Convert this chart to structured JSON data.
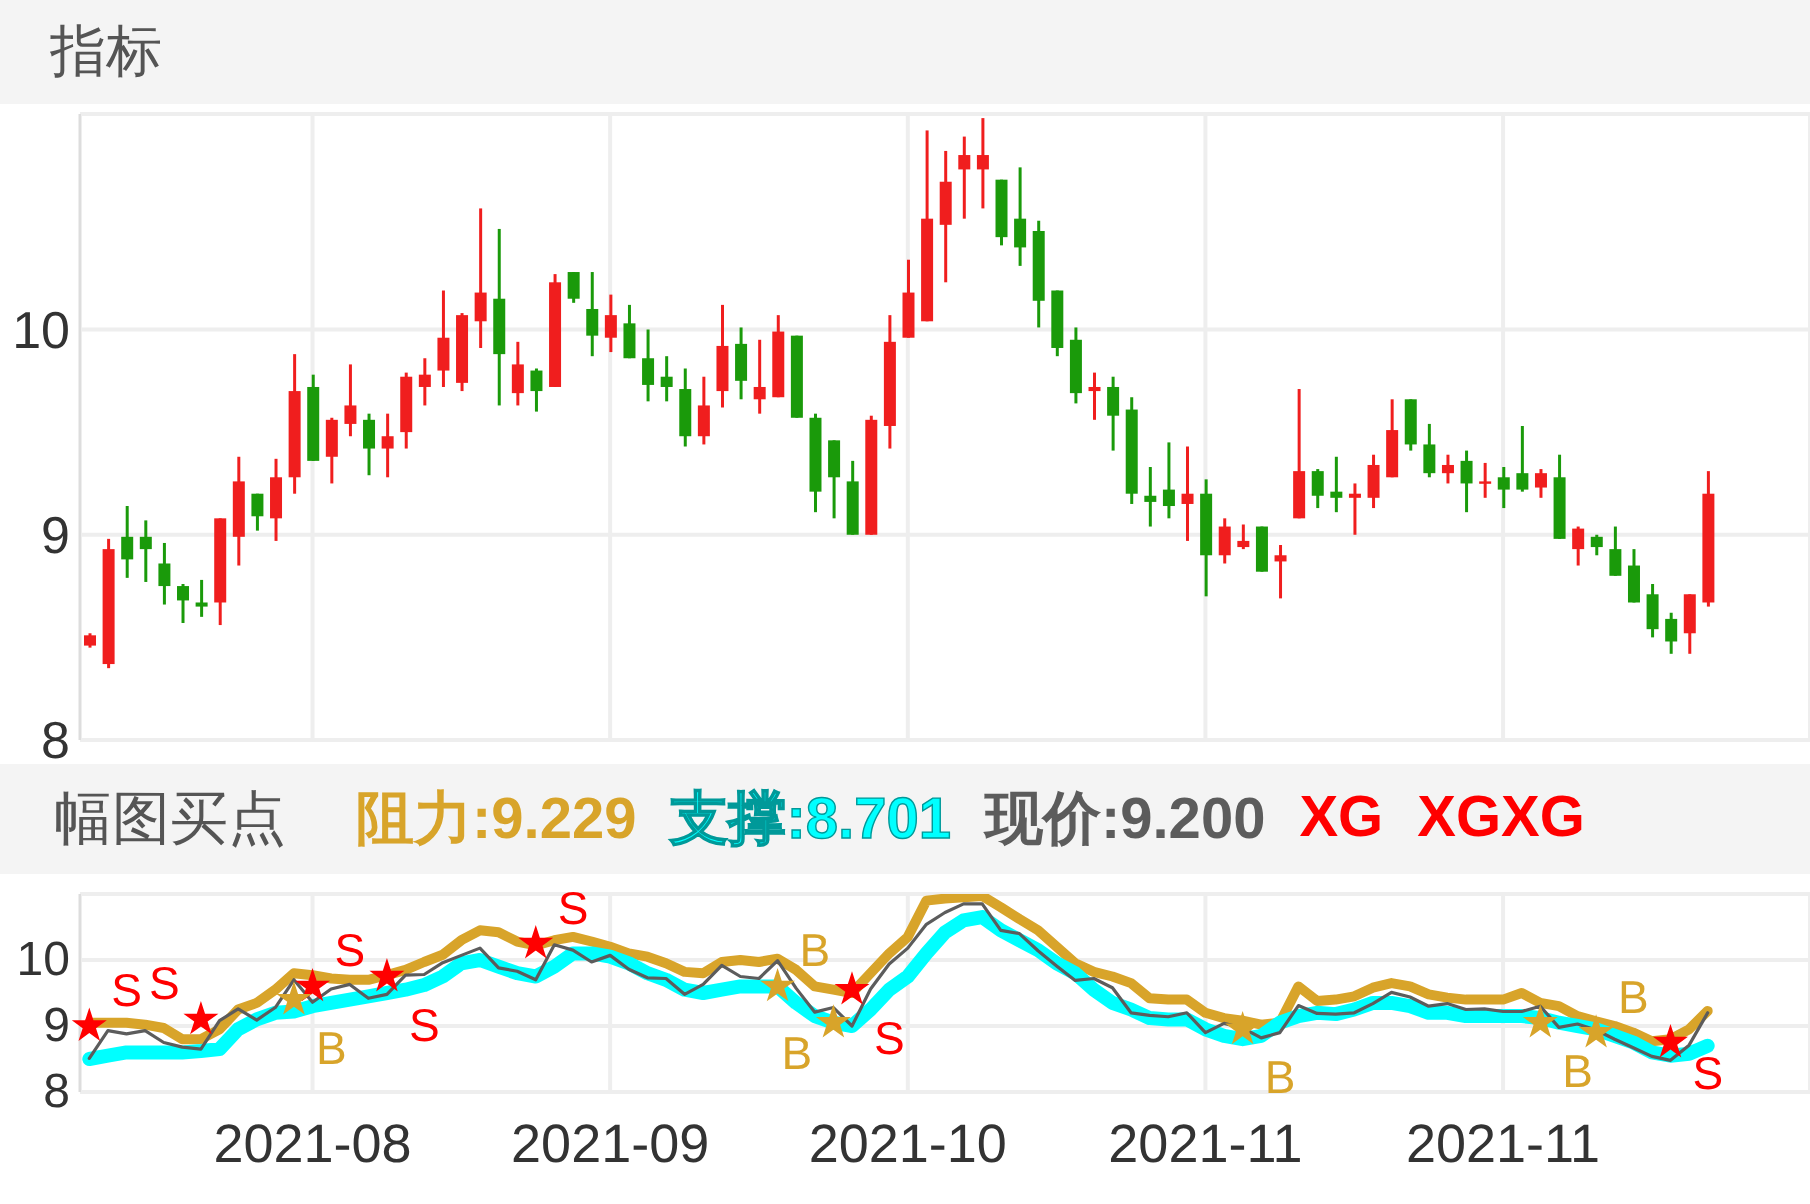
{
  "chart_data": [
    {
      "type": "candlestick",
      "title": "指标",
      "categories": [
        null,
        null,
        null,
        null,
        null,
        null,
        null,
        null,
        null,
        null,
        null,
        null,
        "2021-08",
        null,
        null,
        null,
        null,
        null,
        null,
        null,
        null,
        null,
        null,
        null,
        null,
        null,
        null,
        null,
        "2021-09",
        null,
        null,
        null,
        null,
        null,
        null,
        null,
        null,
        null,
        null,
        null,
        null,
        null,
        null,
        null,
        "2021-10",
        null,
        null,
        null,
        null,
        null,
        null,
        null,
        null,
        null,
        null,
        null,
        null,
        null,
        null,
        null,
        "2021-11",
        null,
        null,
        null,
        null,
        null,
        null,
        null,
        null,
        null,
        null,
        null,
        null,
        null,
        null,
        null,
        "2021-11",
        null,
        null,
        null,
        null,
        null,
        null,
        null,
        null,
        null,
        null,
        null,
        null,
        null,
        null,
        null,
        null
      ],
      "ohlc": [
        [
          8.46,
          8.52,
          8.45,
          8.51
        ],
        [
          8.37,
          8.98,
          8.35,
          8.93
        ],
        [
          8.99,
          9.14,
          8.79,
          8.88
        ],
        [
          8.99,
          9.07,
          8.77,
          8.93
        ],
        [
          8.86,
          8.96,
          8.66,
          8.75
        ],
        [
          8.75,
          8.76,
          8.57,
          8.68
        ],
        [
          8.67,
          8.78,
          8.6,
          8.65
        ],
        [
          8.67,
          9.08,
          8.56,
          9.08
        ],
        [
          8.99,
          9.38,
          8.85,
          9.26
        ],
        [
          9.2,
          9.2,
          9.02,
          9.09
        ],
        [
          9.08,
          9.37,
          8.97,
          9.28
        ],
        [
          9.28,
          9.88,
          9.2,
          9.7
        ],
        [
          9.72,
          9.78,
          9.36,
          9.36
        ],
        [
          9.38,
          9.57,
          9.25,
          9.56
        ],
        [
          9.54,
          9.83,
          9.48,
          9.63
        ],
        [
          9.56,
          9.59,
          9.29,
          9.42
        ],
        [
          9.42,
          9.59,
          9.28,
          9.48
        ],
        [
          9.5,
          9.79,
          9.42,
          9.77
        ],
        [
          9.72,
          9.86,
          9.63,
          9.78
        ],
        [
          9.8,
          10.19,
          9.72,
          9.96
        ],
        [
          9.74,
          10.08,
          9.7,
          10.07
        ],
        [
          10.04,
          10.59,
          9.91,
          10.18
        ],
        [
          10.15,
          10.49,
          9.63,
          9.88
        ],
        [
          9.69,
          9.94,
          9.63,
          9.83
        ],
        [
          9.8,
          9.81,
          9.6,
          9.7
        ],
        [
          9.72,
          10.27,
          9.72,
          10.23
        ],
        [
          10.28,
          10.28,
          10.13,
          10.15
        ],
        [
          10.1,
          10.28,
          9.87,
          9.97
        ],
        [
          9.96,
          10.17,
          9.89,
          10.07
        ],
        [
          10.03,
          10.12,
          9.86,
          9.86
        ],
        [
          9.86,
          10.0,
          9.65,
          9.73
        ],
        [
          9.77,
          9.87,
          9.65,
          9.72
        ],
        [
          9.71,
          9.81,
          9.43,
          9.48
        ],
        [
          9.48,
          9.77,
          9.44,
          9.63
        ],
        [
          9.7,
          10.12,
          9.62,
          9.92
        ],
        [
          9.93,
          10.01,
          9.66,
          9.75
        ],
        [
          9.66,
          9.95,
          9.59,
          9.72
        ],
        [
          9.67,
          10.07,
          9.67,
          9.99
        ],
        [
          9.97,
          9.97,
          9.57,
          9.57
        ],
        [
          9.57,
          9.59,
          9.11,
          9.21
        ],
        [
          9.46,
          9.46,
          9.08,
          9.28
        ],
        [
          9.26,
          9.36,
          9.0,
          9.0
        ],
        [
          9.0,
          9.58,
          9.0,
          9.56
        ],
        [
          9.53,
          10.07,
          9.42,
          9.94
        ],
        [
          9.96,
          10.34,
          9.96,
          10.18
        ],
        [
          10.04,
          10.97,
          10.04,
          10.54
        ],
        [
          10.51,
          10.87,
          10.23,
          10.72
        ],
        [
          10.78,
          10.94,
          10.54,
          10.85
        ],
        [
          10.78,
          11.03,
          10.59,
          10.85
        ],
        [
          10.73,
          10.73,
          10.41,
          10.45
        ],
        [
          10.54,
          10.79,
          10.31,
          10.4
        ],
        [
          10.48,
          10.53,
          10.01,
          10.14
        ],
        [
          10.19,
          10.19,
          9.87,
          9.91
        ],
        [
          9.95,
          10.01,
          9.64,
          9.69
        ],
        [
          9.7,
          9.79,
          9.56,
          9.72
        ],
        [
          9.72,
          9.77,
          9.41,
          9.58
        ],
        [
          9.61,
          9.67,
          9.15,
          9.2
        ],
        [
          9.19,
          9.33,
          9.04,
          9.16
        ],
        [
          9.22,
          9.45,
          9.08,
          9.14
        ],
        [
          9.15,
          9.43,
          8.97,
          9.2
        ],
        [
          9.2,
          9.27,
          8.7,
          8.9
        ],
        [
          8.9,
          9.08,
          8.86,
          9.04
        ],
        [
          8.94,
          9.05,
          8.93,
          8.97
        ],
        [
          9.04,
          9.04,
          8.82,
          8.82
        ],
        [
          8.87,
          8.95,
          8.69,
          8.9
        ],
        [
          9.08,
          9.71,
          9.08,
          9.31
        ],
        [
          9.31,
          9.32,
          9.13,
          9.19
        ],
        [
          9.21,
          9.38,
          9.11,
          9.18
        ],
        [
          9.18,
          9.25,
          9.0,
          9.2
        ],
        [
          9.18,
          9.39,
          9.13,
          9.34
        ],
        [
          9.28,
          9.66,
          9.28,
          9.51
        ],
        [
          9.66,
          9.66,
          9.41,
          9.44
        ],
        [
          9.44,
          9.54,
          9.28,
          9.3
        ],
        [
          9.3,
          9.39,
          9.25,
          9.34
        ],
        [
          9.36,
          9.41,
          9.11,
          9.25
        ],
        [
          9.25,
          9.35,
          9.18,
          9.26
        ],
        [
          9.28,
          9.33,
          9.13,
          9.22
        ],
        [
          9.3,
          9.53,
          9.21,
          9.22
        ],
        [
          9.23,
          9.32,
          9.18,
          9.3
        ],
        [
          9.28,
          9.39,
          8.98,
          8.98
        ],
        [
          8.93,
          9.04,
          8.85,
          9.03
        ],
        [
          8.99,
          9.0,
          8.9,
          8.94
        ],
        [
          8.93,
          9.04,
          8.8,
          8.8
        ],
        [
          8.85,
          8.93,
          8.67,
          8.67
        ],
        [
          8.71,
          8.76,
          8.5,
          8.54
        ],
        [
          8.59,
          8.62,
          8.42,
          8.48
        ],
        [
          8.52,
          8.71,
          8.42,
          8.71
        ],
        [
          8.67,
          9.31,
          8.65,
          9.2
        ],
        null,
        null,
        null,
        null,
        null
      ],
      "colors": [
        "#f01e1e",
        "#f01e1e",
        "#1a9a0a",
        "#1a9a0a",
        "#1a9a0a",
        "#1a9a0a",
        "#1a9a0a",
        "#f01e1e",
        "#f01e1e",
        "#1a9a0a",
        "#f01e1e",
        "#f01e1e",
        "#1a9a0a",
        "#f01e1e",
        "#f01e1e",
        "#1a9a0a",
        "#f01e1e",
        "#f01e1e",
        "#f01e1e",
        "#f01e1e",
        "#f01e1e",
        "#f01e1e",
        "#1a9a0a",
        "#f01e1e",
        "#1a9a0a",
        "#f01e1e",
        "#1a9a0a",
        "#1a9a0a",
        "#f01e1e",
        "#1a9a0a",
        "#1a9a0a",
        "#1a9a0a",
        "#1a9a0a",
        "#f01e1e",
        "#f01e1e",
        "#1a9a0a",
        "#f01e1e",
        "#f01e1e",
        "#1a9a0a",
        "#1a9a0a",
        "#1a9a0a",
        "#1a9a0a",
        "#f01e1e",
        "#f01e1e",
        "#f01e1e",
        "#f01e1e",
        "#f01e1e",
        "#f01e1e",
        "#f01e1e",
        "#1a9a0a",
        "#1a9a0a",
        "#1a9a0a",
        "#1a9a0a",
        "#1a9a0a",
        "#f01e1e",
        "#1a9a0a",
        "#1a9a0a",
        "#1a9a0a",
        "#1a9a0a",
        "#f01e1e",
        "#1a9a0a",
        "#f01e1e",
        "#f01e1e",
        "#1a9a0a",
        "#f01e1e",
        "#f01e1e",
        "#1a9a0a",
        "#1a9a0a",
        "#f01e1e",
        "#f01e1e",
        "#f01e1e",
        "#1a9a0a",
        "#1a9a0a",
        "#f01e1e",
        "#1a9a0a",
        "#f01e1e",
        "#1a9a0a",
        "#1a9a0a",
        "#f01e1e",
        "#1a9a0a",
        "#f01e1e",
        "#1a9a0a",
        "#1a9a0a",
        "#1a9a0a",
        "#1a9a0a",
        "#1a9a0a",
        "#f01e1e",
        "#f01e1e",
        null,
        null,
        null,
        null,
        null
      ],
      "ylim": [
        8,
        11.05
      ],
      "yticks": [
        8,
        9,
        10
      ],
      "grid": true,
      "tick_labels": "y"
    },
    {
      "type": "line",
      "title": "幅图买点",
      "categories": [
        null,
        null,
        null,
        null,
        null,
        null,
        null,
        null,
        null,
        null,
        null,
        null,
        "2021-08",
        null,
        null,
        null,
        null,
        null,
        null,
        null,
        null,
        null,
        null,
        null,
        null,
        null,
        null,
        null,
        "2021-09",
        null,
        null,
        null,
        null,
        null,
        null,
        null,
        null,
        null,
        null,
        null,
        null,
        null,
        null,
        null,
        "2021-10",
        null,
        null,
        null,
        null,
        null,
        null,
        null,
        null,
        null,
        null,
        null,
        null,
        null,
        null,
        null,
        "2021-11",
        null,
        null,
        null,
        null,
        null,
        null,
        null,
        null,
        null,
        null,
        null,
        null,
        null,
        null,
        null,
        "2021-11",
        null,
        null,
        null,
        null,
        null,
        null,
        null,
        null,
        null,
        null,
        null,
        null,
        null,
        null,
        null,
        null
      ],
      "series": [
        {
          "name": "阻力:9.229",
          "color": "#d8a42a",
          "values": [
            9.05,
            9.05,
            9.05,
            9.02,
            8.97,
            8.8,
            8.8,
            8.95,
            9.25,
            9.35,
            9.55,
            9.8,
            9.77,
            9.72,
            9.7,
            9.7,
            9.77,
            9.85,
            9.97,
            10.08,
            10.3,
            10.45,
            10.42,
            10.28,
            10.22,
            10.3,
            10.35,
            10.28,
            10.2,
            10.1,
            10.05,
            9.95,
            9.82,
            9.8,
            9.97,
            10.0,
            9.97,
            10.02,
            9.85,
            9.6,
            9.55,
            9.5,
            9.8,
            10.1,
            10.35,
            10.9,
            10.93,
            10.95,
            10.97,
            10.8,
            10.62,
            10.45,
            10.2,
            9.95,
            9.82,
            9.75,
            9.65,
            9.42,
            9.4,
            9.4,
            9.2,
            9.12,
            9.08,
            9.02,
            9.05,
            9.6,
            9.38,
            9.4,
            9.45,
            9.58,
            9.65,
            9.6,
            9.48,
            9.43,
            9.4,
            9.4,
            9.4,
            9.5,
            9.35,
            9.3,
            9.15,
            9.07,
            9.0,
            8.9,
            8.77,
            8.8,
            8.95,
            9.229,
            null,
            null,
            null,
            null,
            null
          ]
        },
        {
          "name": "支撑:8.701",
          "color": "#00ffff",
          "values": [
            8.5,
            8.55,
            8.6,
            8.6,
            8.6,
            8.6,
            8.62,
            8.65,
            8.95,
            9.1,
            9.2,
            9.22,
            9.3,
            9.35,
            9.4,
            9.45,
            9.5,
            9.55,
            9.62,
            9.75,
            9.95,
            10.0,
            9.9,
            9.8,
            9.75,
            9.9,
            10.1,
            10.1,
            10.05,
            9.95,
            9.8,
            9.7,
            9.55,
            9.5,
            9.55,
            9.6,
            9.6,
            9.6,
            9.35,
            9.15,
            9.05,
            9.0,
            9.25,
            9.55,
            9.75,
            10.1,
            10.42,
            10.6,
            10.65,
            10.45,
            10.3,
            10.15,
            9.95,
            9.8,
            9.55,
            9.35,
            9.25,
            9.12,
            9.1,
            9.1,
            8.95,
            8.85,
            8.8,
            8.85,
            9.05,
            9.15,
            9.2,
            9.18,
            9.25,
            9.35,
            9.35,
            9.3,
            9.2,
            9.2,
            9.15,
            9.15,
            9.15,
            9.15,
            9.12,
            9.05,
            9.0,
            8.95,
            8.85,
            8.75,
            8.6,
            8.55,
            8.58,
            8.701,
            null,
            null,
            null,
            null,
            null
          ]
        },
        {
          "name": "现价:9.200",
          "color": "#5c5c5c",
          "values": [
            8.51,
            8.93,
            8.88,
            8.93,
            8.75,
            8.68,
            8.65,
            9.08,
            9.26,
            9.09,
            9.28,
            9.7,
            9.36,
            9.56,
            9.63,
            9.42,
            9.48,
            9.77,
            9.78,
            9.96,
            10.07,
            10.18,
            9.88,
            9.83,
            9.7,
            10.23,
            10.15,
            9.97,
            10.07,
            9.86,
            9.73,
            9.72,
            9.48,
            9.63,
            9.92,
            9.75,
            9.72,
            9.99,
            9.57,
            9.21,
            9.28,
            9.0,
            9.56,
            9.94,
            10.18,
            10.54,
            10.72,
            10.85,
            10.85,
            10.45,
            10.4,
            10.14,
            9.91,
            9.69,
            9.72,
            9.58,
            9.2,
            9.16,
            9.14,
            9.2,
            8.9,
            9.04,
            8.97,
            8.82,
            8.9,
            9.31,
            9.19,
            9.18,
            9.2,
            9.34,
            9.51,
            9.44,
            9.3,
            9.34,
            9.25,
            9.26,
            9.22,
            9.22,
            9.3,
            8.98,
            9.03,
            8.94,
            8.8,
            8.67,
            8.54,
            8.48,
            8.71,
            9.2,
            null,
            null,
            null,
            null,
            null
          ]
        },
        {
          "type": "scatter",
          "marker": "star",
          "color": "#ff0000",
          "values": [
            9.0,
            null,
            null,
            null,
            null,
            null,
            9.1,
            null,
            null,
            null,
            null,
            null,
            9.6,
            null,
            null,
            null,
            9.75,
            null,
            null,
            null,
            null,
            null,
            null,
            null,
            10.25,
            null,
            null,
            null,
            null,
            null,
            null,
            null,
            null,
            null,
            null,
            null,
            null,
            null,
            null,
            null,
            null,
            9.55,
            null,
            null,
            null,
            null,
            null,
            null,
            null,
            null,
            null,
            null,
            null,
            null,
            null,
            null,
            null,
            null,
            null,
            null,
            null,
            null,
            null,
            null,
            null,
            null,
            null,
            null,
            null,
            null,
            null,
            null,
            null,
            null,
            null,
            null,
            null,
            null,
            null,
            null,
            null,
            null,
            null,
            null,
            null,
            8.75,
            null,
            null,
            null,
            null,
            null,
            null,
            null
          ],
          "value_labels": [
            "S",
            null,
            null,
            null,
            null,
            null,
            "S",
            null,
            null,
            null,
            null,
            null,
            "S",
            null,
            null,
            null,
            "S",
            null,
            null,
            null,
            null,
            null,
            null,
            null,
            "S",
            null,
            null,
            null,
            null,
            null,
            null,
            null,
            null,
            null,
            null,
            null,
            null,
            null,
            null,
            null,
            null,
            "S",
            null,
            null,
            null,
            null,
            null,
            null,
            null,
            null,
            null,
            null,
            null,
            null,
            null,
            null,
            null,
            null,
            null,
            null,
            null,
            null,
            null,
            null,
            null,
            null,
            null,
            null,
            null,
            null,
            null,
            null,
            null,
            null,
            null,
            null,
            null,
            null,
            null,
            null,
            null,
            null,
            null,
            null,
            null,
            "S",
            null,
            null,
            null,
            null,
            null,
            null,
            null
          ]
        },
        {
          "type": "scatter",
          "marker": "star",
          "color": "#d8a42a",
          "values": [
            null,
            null,
            null,
            null,
            null,
            null,
            null,
            null,
            null,
            null,
            null,
            9.4,
            null,
            null,
            null,
            null,
            null,
            null,
            null,
            null,
            null,
            null,
            null,
            null,
            null,
            null,
            null,
            null,
            null,
            null,
            null,
            null,
            null,
            null,
            null,
            null,
            null,
            9.6,
            null,
            null,
            9.05,
            null,
            null,
            null,
            null,
            null,
            null,
            null,
            null,
            null,
            null,
            null,
            null,
            null,
            null,
            null,
            null,
            null,
            null,
            null,
            null,
            null,
            8.95,
            null,
            null,
            null,
            null,
            null,
            null,
            null,
            null,
            null,
            null,
            null,
            null,
            null,
            null,
            null,
            9.05,
            null,
            null,
            8.9,
            null,
            null,
            null,
            null,
            null,
            null,
            null,
            null,
            null,
            null,
            null
          ],
          "value_labels": [
            null,
            null,
            null,
            null,
            null,
            null,
            null,
            null,
            null,
            null,
            null,
            "B",
            null,
            null,
            null,
            null,
            null,
            null,
            null,
            null,
            null,
            null,
            null,
            null,
            null,
            null,
            null,
            null,
            null,
            null,
            null,
            null,
            null,
            null,
            null,
            null,
            null,
            "B",
            null,
            null,
            "B",
            null,
            null,
            null,
            null,
            null,
            null,
            null,
            null,
            null,
            null,
            null,
            null,
            null,
            null,
            null,
            null,
            null,
            null,
            null,
            null,
            null,
            "B",
            null,
            null,
            null,
            null,
            null,
            null,
            null,
            null,
            null,
            null,
            null,
            null,
            null,
            null,
            null,
            "B",
            null,
            null,
            "B",
            null,
            null,
            null,
            null,
            null,
            null,
            null,
            null,
            null,
            null,
            null
          ]
        }
      ],
      "annotations": [
        "XG",
        "XGXG"
      ],
      "ylim": [
        8,
        11
      ],
      "yticks": [
        8,
        9,
        10
      ],
      "grid": true,
      "legend": "top left"
    }
  ]
}
